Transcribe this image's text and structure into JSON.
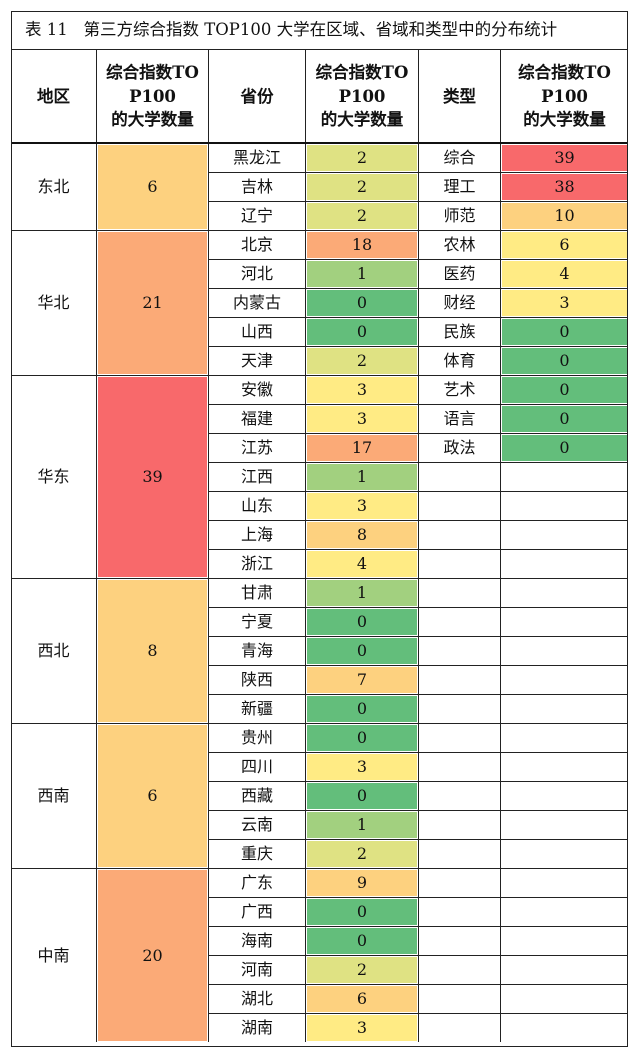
{
  "title": {
    "number": "表 11",
    "text": "第三方综合指数 TOP100 大学在区域、省域和类型中的分布统计"
  },
  "headers": {
    "region": "地区",
    "region_count": "综合指数TOP100 的大学数量",
    "province": "省份",
    "province_count": "综合指数TOP100 的大学数量",
    "type": "类型",
    "type_count": "综合指数TOP100 的大学数量"
  },
  "colors": {
    "red": "#f8696b",
    "orange": "#fbaa77",
    "light_orange": "#fdd17f",
    "yellow": "#ffeb84",
    "yellow_green": "#dfe283",
    "light_green": "#a2d07f",
    "green": "#63be7b"
  },
  "regions": [
    {
      "name": "东北",
      "count": "6",
      "color": "#fdd17f",
      "provinces": [
        {
          "name": "黑龙江",
          "count": "2",
          "color": "#dfe283"
        },
        {
          "name": "吉林",
          "count": "2",
          "color": "#dfe283"
        },
        {
          "name": "辽宁",
          "count": "2",
          "color": "#dfe283"
        }
      ]
    },
    {
      "name": "华北",
      "count": "21",
      "color": "#fbaa77",
      "provinces": [
        {
          "name": "北京",
          "count": "18",
          "color": "#fbaa77"
        },
        {
          "name": "河北",
          "count": "1",
          "color": "#a2d07f"
        },
        {
          "name": "内蒙古",
          "count": "0",
          "color": "#63be7b"
        },
        {
          "name": "山西",
          "count": "0",
          "color": "#63be7b"
        },
        {
          "name": "天津",
          "count": "2",
          "color": "#dfe283"
        }
      ]
    },
    {
      "name": "华东",
      "count": "39",
      "color": "#f8696b",
      "provinces": [
        {
          "name": "安徽",
          "count": "3",
          "color": "#ffeb84"
        },
        {
          "name": "福建",
          "count": "3",
          "color": "#ffeb84"
        },
        {
          "name": "江苏",
          "count": "17",
          "color": "#fbaa77"
        },
        {
          "name": "江西",
          "count": "1",
          "color": "#a2d07f"
        },
        {
          "name": "山东",
          "count": "3",
          "color": "#ffeb84"
        },
        {
          "name": "上海",
          "count": "8",
          "color": "#fdd17f"
        },
        {
          "name": "浙江",
          "count": "4",
          "color": "#ffeb84"
        }
      ]
    },
    {
      "name": "西北",
      "count": "8",
      "color": "#fdd17f",
      "provinces": [
        {
          "name": "甘肃",
          "count": "1",
          "color": "#a2d07f"
        },
        {
          "name": "宁夏",
          "count": "0",
          "color": "#63be7b"
        },
        {
          "name": "青海",
          "count": "0",
          "color": "#63be7b"
        },
        {
          "name": "陕西",
          "count": "7",
          "color": "#fdd17f"
        },
        {
          "name": "新疆",
          "count": "0",
          "color": "#63be7b"
        }
      ]
    },
    {
      "name": "西南",
      "count": "6",
      "color": "#fdd17f",
      "provinces": [
        {
          "name": "贵州",
          "count": "0",
          "color": "#63be7b"
        },
        {
          "name": "四川",
          "count": "3",
          "color": "#ffeb84"
        },
        {
          "name": "西藏",
          "count": "0",
          "color": "#63be7b"
        },
        {
          "name": "云南",
          "count": "1",
          "color": "#a2d07f"
        },
        {
          "name": "重庆",
          "count": "2",
          "color": "#dfe283"
        }
      ]
    },
    {
      "name": "中南",
      "count": "20",
      "color": "#fbaa77",
      "provinces": [
        {
          "name": "广东",
          "count": "9",
          "color": "#fdd17f"
        },
        {
          "name": "广西",
          "count": "0",
          "color": "#63be7b"
        },
        {
          "name": "海南",
          "count": "0",
          "color": "#63be7b"
        },
        {
          "name": "河南",
          "count": "2",
          "color": "#dfe283"
        },
        {
          "name": "湖北",
          "count": "6",
          "color": "#fdd17f"
        },
        {
          "name": "湖南",
          "count": "3",
          "color": "#ffeb84"
        }
      ]
    }
  ],
  "types": [
    {
      "name": "综合",
      "count": "39",
      "color": "#f8696b"
    },
    {
      "name": "理工",
      "count": "38",
      "color": "#f8696b"
    },
    {
      "name": "师范",
      "count": "10",
      "color": "#fdd17f"
    },
    {
      "name": "农林",
      "count": "6",
      "color": "#ffeb84"
    },
    {
      "name": "医药",
      "count": "4",
      "color": "#ffeb84"
    },
    {
      "name": "财经",
      "count": "3",
      "color": "#ffeb84"
    },
    {
      "name": "民族",
      "count": "0",
      "color": "#63be7b"
    },
    {
      "name": "体育",
      "count": "0",
      "color": "#63be7b"
    },
    {
      "name": "艺术",
      "count": "0",
      "color": "#63be7b"
    },
    {
      "name": "语言",
      "count": "0",
      "color": "#63be7b"
    },
    {
      "name": "政法",
      "count": "0",
      "color": "#63be7b"
    }
  ]
}
